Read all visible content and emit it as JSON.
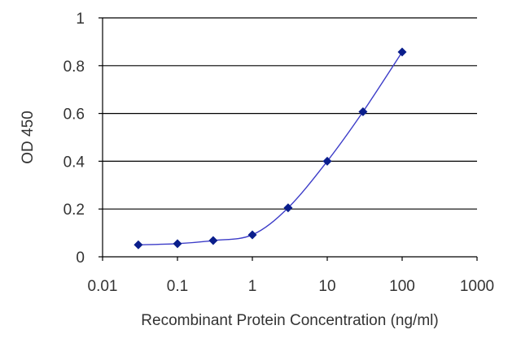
{
  "chart_data": {
    "type": "line",
    "xscale": "log",
    "xlabel": "Recombinant Protein Concentration (ng/ml)",
    "ylabel": "OD 450",
    "xlim": [
      0.01,
      1000
    ],
    "ylim": [
      0,
      1
    ],
    "xticks": [
      0.01,
      0.1,
      1,
      10,
      100,
      1000
    ],
    "xtick_labels": [
      "0.01",
      "0.1",
      "1",
      "10",
      "100",
      "1000"
    ],
    "yticks": [
      0,
      0.2,
      0.4,
      0.6,
      0.8,
      1
    ],
    "ytick_labels": [
      "0",
      "0.2",
      "0.4",
      "0.6",
      "0.8",
      "1"
    ],
    "grid": "horizontal",
    "series": [
      {
        "x": [
          0.03,
          0.1,
          0.3,
          1,
          3,
          10,
          30,
          100
        ],
        "y": [
          0.05,
          0.055,
          0.068,
          0.092,
          0.205,
          0.4,
          0.607,
          0.857
        ],
        "marker": "diamond"
      }
    ],
    "colors": {
      "line": "#3c3cc8",
      "marker": "#0a1e8c",
      "grid": "#000000",
      "text": "#333333"
    }
  }
}
